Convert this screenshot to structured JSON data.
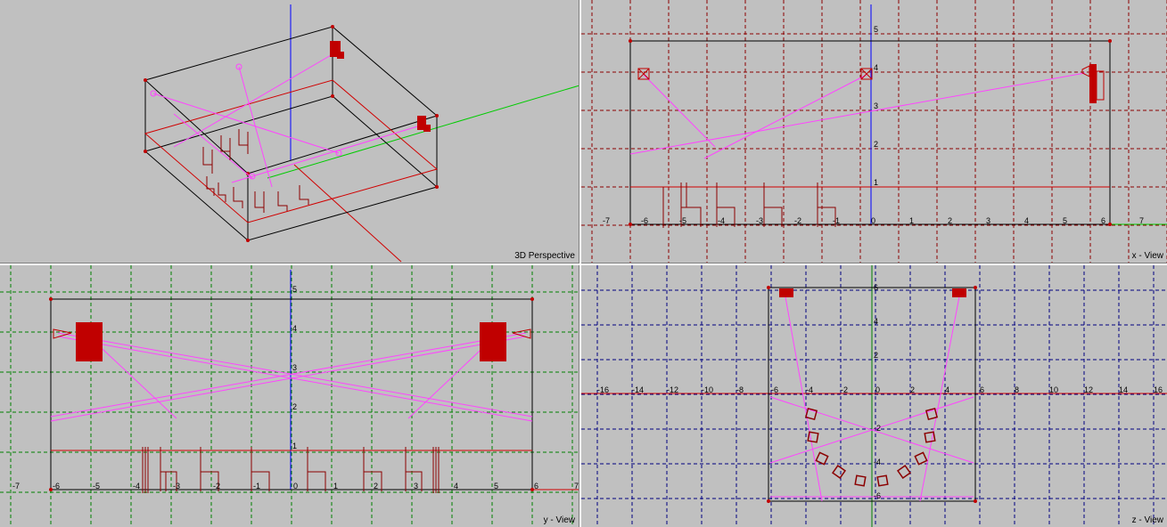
{
  "viewports": {
    "perspective": {
      "label": "3D Perspective"
    },
    "x_view": {
      "label": "x - View",
      "h_ticks": [
        "-7",
        "-6",
        "-5",
        "-4",
        "-3",
        "-2",
        "-1",
        "0",
        "1",
        "2",
        "3",
        "4",
        "5",
        "6",
        "7"
      ],
      "v_ticks": [
        "1",
        "2",
        "3",
        "4",
        "5"
      ]
    },
    "y_view": {
      "label": "y - View",
      "h_ticks": [
        "-7",
        "-6",
        "-5",
        "-4",
        "-3",
        "-2",
        "-1",
        "0",
        "1",
        "2",
        "3",
        "4",
        "5",
        "6",
        "7"
      ],
      "v_ticks": [
        "1",
        "2",
        "3",
        "4",
        "5"
      ]
    },
    "z_view": {
      "label": "z - View",
      "h_ticks": [
        "-16",
        "-14",
        "-12",
        "-10",
        "-8",
        "-6",
        "-4",
        "-2",
        "0",
        "2",
        "4",
        "6",
        "8",
        "10",
        "12",
        "14",
        "16"
      ],
      "v_ticks": [
        "6",
        "4",
        "2",
        "-2",
        "-4",
        "-6"
      ]
    }
  },
  "colors": {
    "background": "#c0c0c0",
    "room_outline": "#000000",
    "floor_line": "#d00000",
    "speaker": "#c00000",
    "sound_ray": "#ff44ff",
    "chair": "#8b0000",
    "grid_x": "#8b0000",
    "grid_y": "#008000",
    "grid_z": "#000080",
    "axis_blue": "#0000ff",
    "axis_green": "#00cc00"
  }
}
